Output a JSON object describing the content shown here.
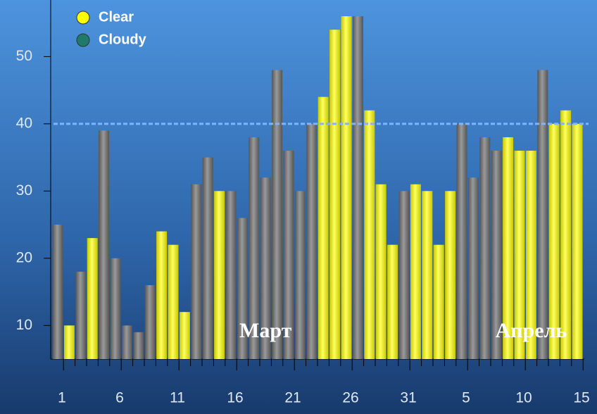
{
  "chart_data": {
    "type": "bar",
    "categories": [
      "1",
      null,
      null,
      null,
      null,
      "6",
      null,
      null,
      null,
      null,
      "11",
      null,
      null,
      null,
      null,
      "16",
      null,
      null,
      null,
      null,
      "21",
      null,
      null,
      null,
      null,
      "26",
      null,
      null,
      null,
      null,
      "31",
      null,
      null,
      null,
      null,
      "5",
      null,
      null,
      null,
      null,
      "10",
      null,
      null,
      null,
      null,
      "15"
    ],
    "series": [
      {
        "name": "Clear",
        "color": "#ffff00",
        "legend_color": "#ffff00",
        "values": [
          null,
          10,
          null,
          23,
          null,
          null,
          null,
          null,
          null,
          24,
          22,
          12,
          null,
          null,
          30,
          null,
          null,
          null,
          null,
          null,
          null,
          null,
          null,
          44,
          54,
          56,
          null,
          42,
          31,
          22,
          null,
          31,
          30,
          22,
          30,
          null,
          null,
          null,
          null,
          38,
          36,
          36,
          null,
          40,
          42,
          40
        ]
      },
      {
        "name": "Cloudy",
        "color": "#7a7a7a",
        "legend_color": "#1e7a6a",
        "values": [
          25,
          null,
          18,
          null,
          39,
          20,
          10,
          9,
          16,
          null,
          null,
          null,
          31,
          35,
          null,
          30,
          26,
          38,
          32,
          48,
          36,
          30,
          40,
          null,
          null,
          null,
          56,
          null,
          null,
          null,
          30,
          null,
          null,
          null,
          null,
          40,
          32,
          38,
          36,
          null,
          null,
          null,
          48,
          null,
          null,
          null
        ]
      }
    ],
    "ylim": [
      5,
      58
    ],
    "yticks": [
      10,
      20,
      30,
      40,
      50
    ],
    "reference_line": 40,
    "annotations": [
      {
        "text": "Март",
        "index": 18
      },
      {
        "text": "Апрель",
        "index": 41
      }
    ]
  }
}
